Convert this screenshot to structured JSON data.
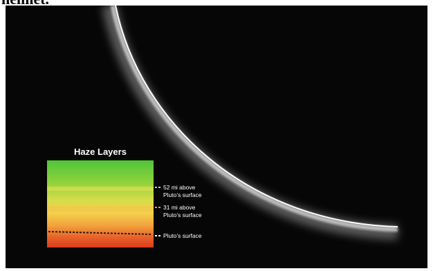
{
  "caption_fragment": "helmet.",
  "panel": {
    "title": "Haze Layers",
    "labels": [
      {
        "lines": [
          "52 mi above",
          "Pluto’s surface"
        ]
      },
      {
        "lines": [
          "31 mi above",
          "Pluto’s surface"
        ]
      },
      {
        "lines": [
          "Pluto’s surface"
        ]
      }
    ]
  }
}
